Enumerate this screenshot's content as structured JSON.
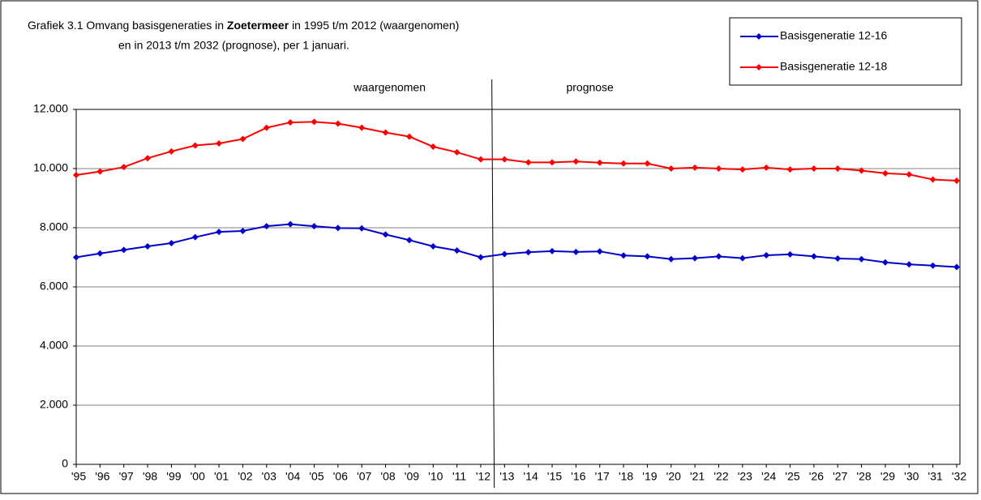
{
  "chart_data": {
    "type": "line",
    "title": {
      "prefix": "Grafiek 3.1 Omvang basisgeneraties in",
      "bold": "Zoetermeer",
      "suffix": "in 1995 t/m 2012 (waargenomen)",
      "line2": "en in 2013 t/m 2032 (prognose), per 1 januari."
    },
    "annotations": [
      "waargenomen",
      "prognose"
    ],
    "categories": [
      "'95",
      "'96",
      "'97",
      "'98",
      "'99",
      "'00",
      "'01",
      "'02",
      "'03",
      "'04",
      "'05",
      "'06",
      "'07",
      "'08",
      "'09",
      "'10",
      "'11",
      "'12",
      "'13",
      "'14",
      "'15",
      "'16",
      "'17",
      "'18",
      "'19",
      "'20",
      "'21",
      "'22",
      "'23",
      "'24",
      "'25",
      "'26",
      "'27",
      "'28",
      "'29",
      "'30",
      "'31",
      "'32"
    ],
    "series": [
      {
        "name": "Basisgeneratie 12-16",
        "color": "#0000cc",
        "values": [
          7000,
          7130,
          7250,
          7370,
          7480,
          7680,
          7860,
          7890,
          8050,
          8120,
          8050,
          7990,
          7980,
          7770,
          7580,
          7370,
          7230,
          7000,
          7110,
          7170,
          7210,
          7180,
          7200,
          7060,
          7030,
          6940,
          6970,
          7030,
          6970,
          7070,
          7100,
          7030,
          6960,
          6940,
          6830,
          6760,
          6720,
          6670
        ]
      },
      {
        "name": "Basisgeneratie 12-18",
        "color": "#ff0000",
        "values": [
          9780,
          9900,
          10050,
          10350,
          10580,
          10780,
          10850,
          11000,
          11380,
          11560,
          11580,
          11520,
          11380,
          11220,
          11080,
          10740,
          10550,
          10310,
          10310,
          10210,
          10210,
          10240,
          10200,
          10170,
          10170,
          10000,
          10030,
          10000,
          9970,
          10030,
          9970,
          10000,
          10000,
          9930,
          9840,
          9800,
          9630,
          9590
        ]
      }
    ],
    "ylim": [
      0,
      12000
    ],
    "yticks": [
      0,
      {
        "value": 2000,
        "label": "2.000"
      },
      {
        "value": 4000,
        "label": "4.000"
      },
      {
        "value": 6000,
        "label": "6.000"
      },
      {
        "value": 8000,
        "label": "8.000"
      },
      {
        "value": 10000,
        "label": "10.000"
      },
      {
        "value": 12000,
        "label": "12.000"
      }
    ],
    "grid": true,
    "legend": "top-right"
  }
}
